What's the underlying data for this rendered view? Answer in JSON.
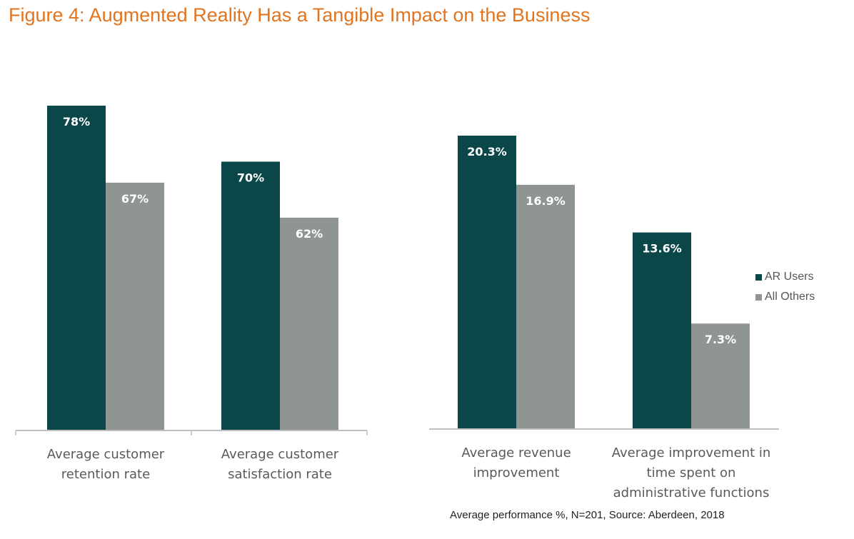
{
  "title": "Figure 4: Augmented Reality Has a Tangible Impact on the Business",
  "source_note": "Average performance %, N=201, Source: Aberdeen, 2018",
  "colors": {
    "ar_users": "#0b4749",
    "all_others": "#8f9691",
    "axis": "#bfbfbf",
    "title": "#e2741f"
  },
  "legend": [
    {
      "label": "AR Users"
    },
    {
      "label": "All Others"
    }
  ],
  "chart_data": [
    {
      "type": "bar",
      "categories": [
        [
          "Average customer",
          "retention rate"
        ],
        [
          "Average customer",
          "satisfaction rate"
        ]
      ],
      "series": [
        {
          "name": "AR Users",
          "values": [
            78,
            70
          ],
          "labels": [
            "78%",
            "70%"
          ]
        },
        {
          "name": "All Others",
          "values": [
            67,
            62
          ],
          "labels": [
            "67%",
            "62%"
          ]
        }
      ],
      "ylim": [
        31.6,
        78
      ]
    },
    {
      "type": "bar",
      "categories": [
        [
          "Average revenue",
          "improvement"
        ],
        [
          "Average improvement in",
          "time spent on",
          "administrative functions"
        ]
      ],
      "series": [
        {
          "name": "AR Users",
          "values": [
            20.3,
            13.6
          ],
          "labels": [
            "20.3%",
            "13.6%"
          ]
        },
        {
          "name": "All Others",
          "values": [
            16.9,
            7.3
          ],
          "labels": [
            "16.9%",
            "7.3%"
          ]
        }
      ],
      "ylim": [
        0,
        20.3
      ]
    }
  ]
}
